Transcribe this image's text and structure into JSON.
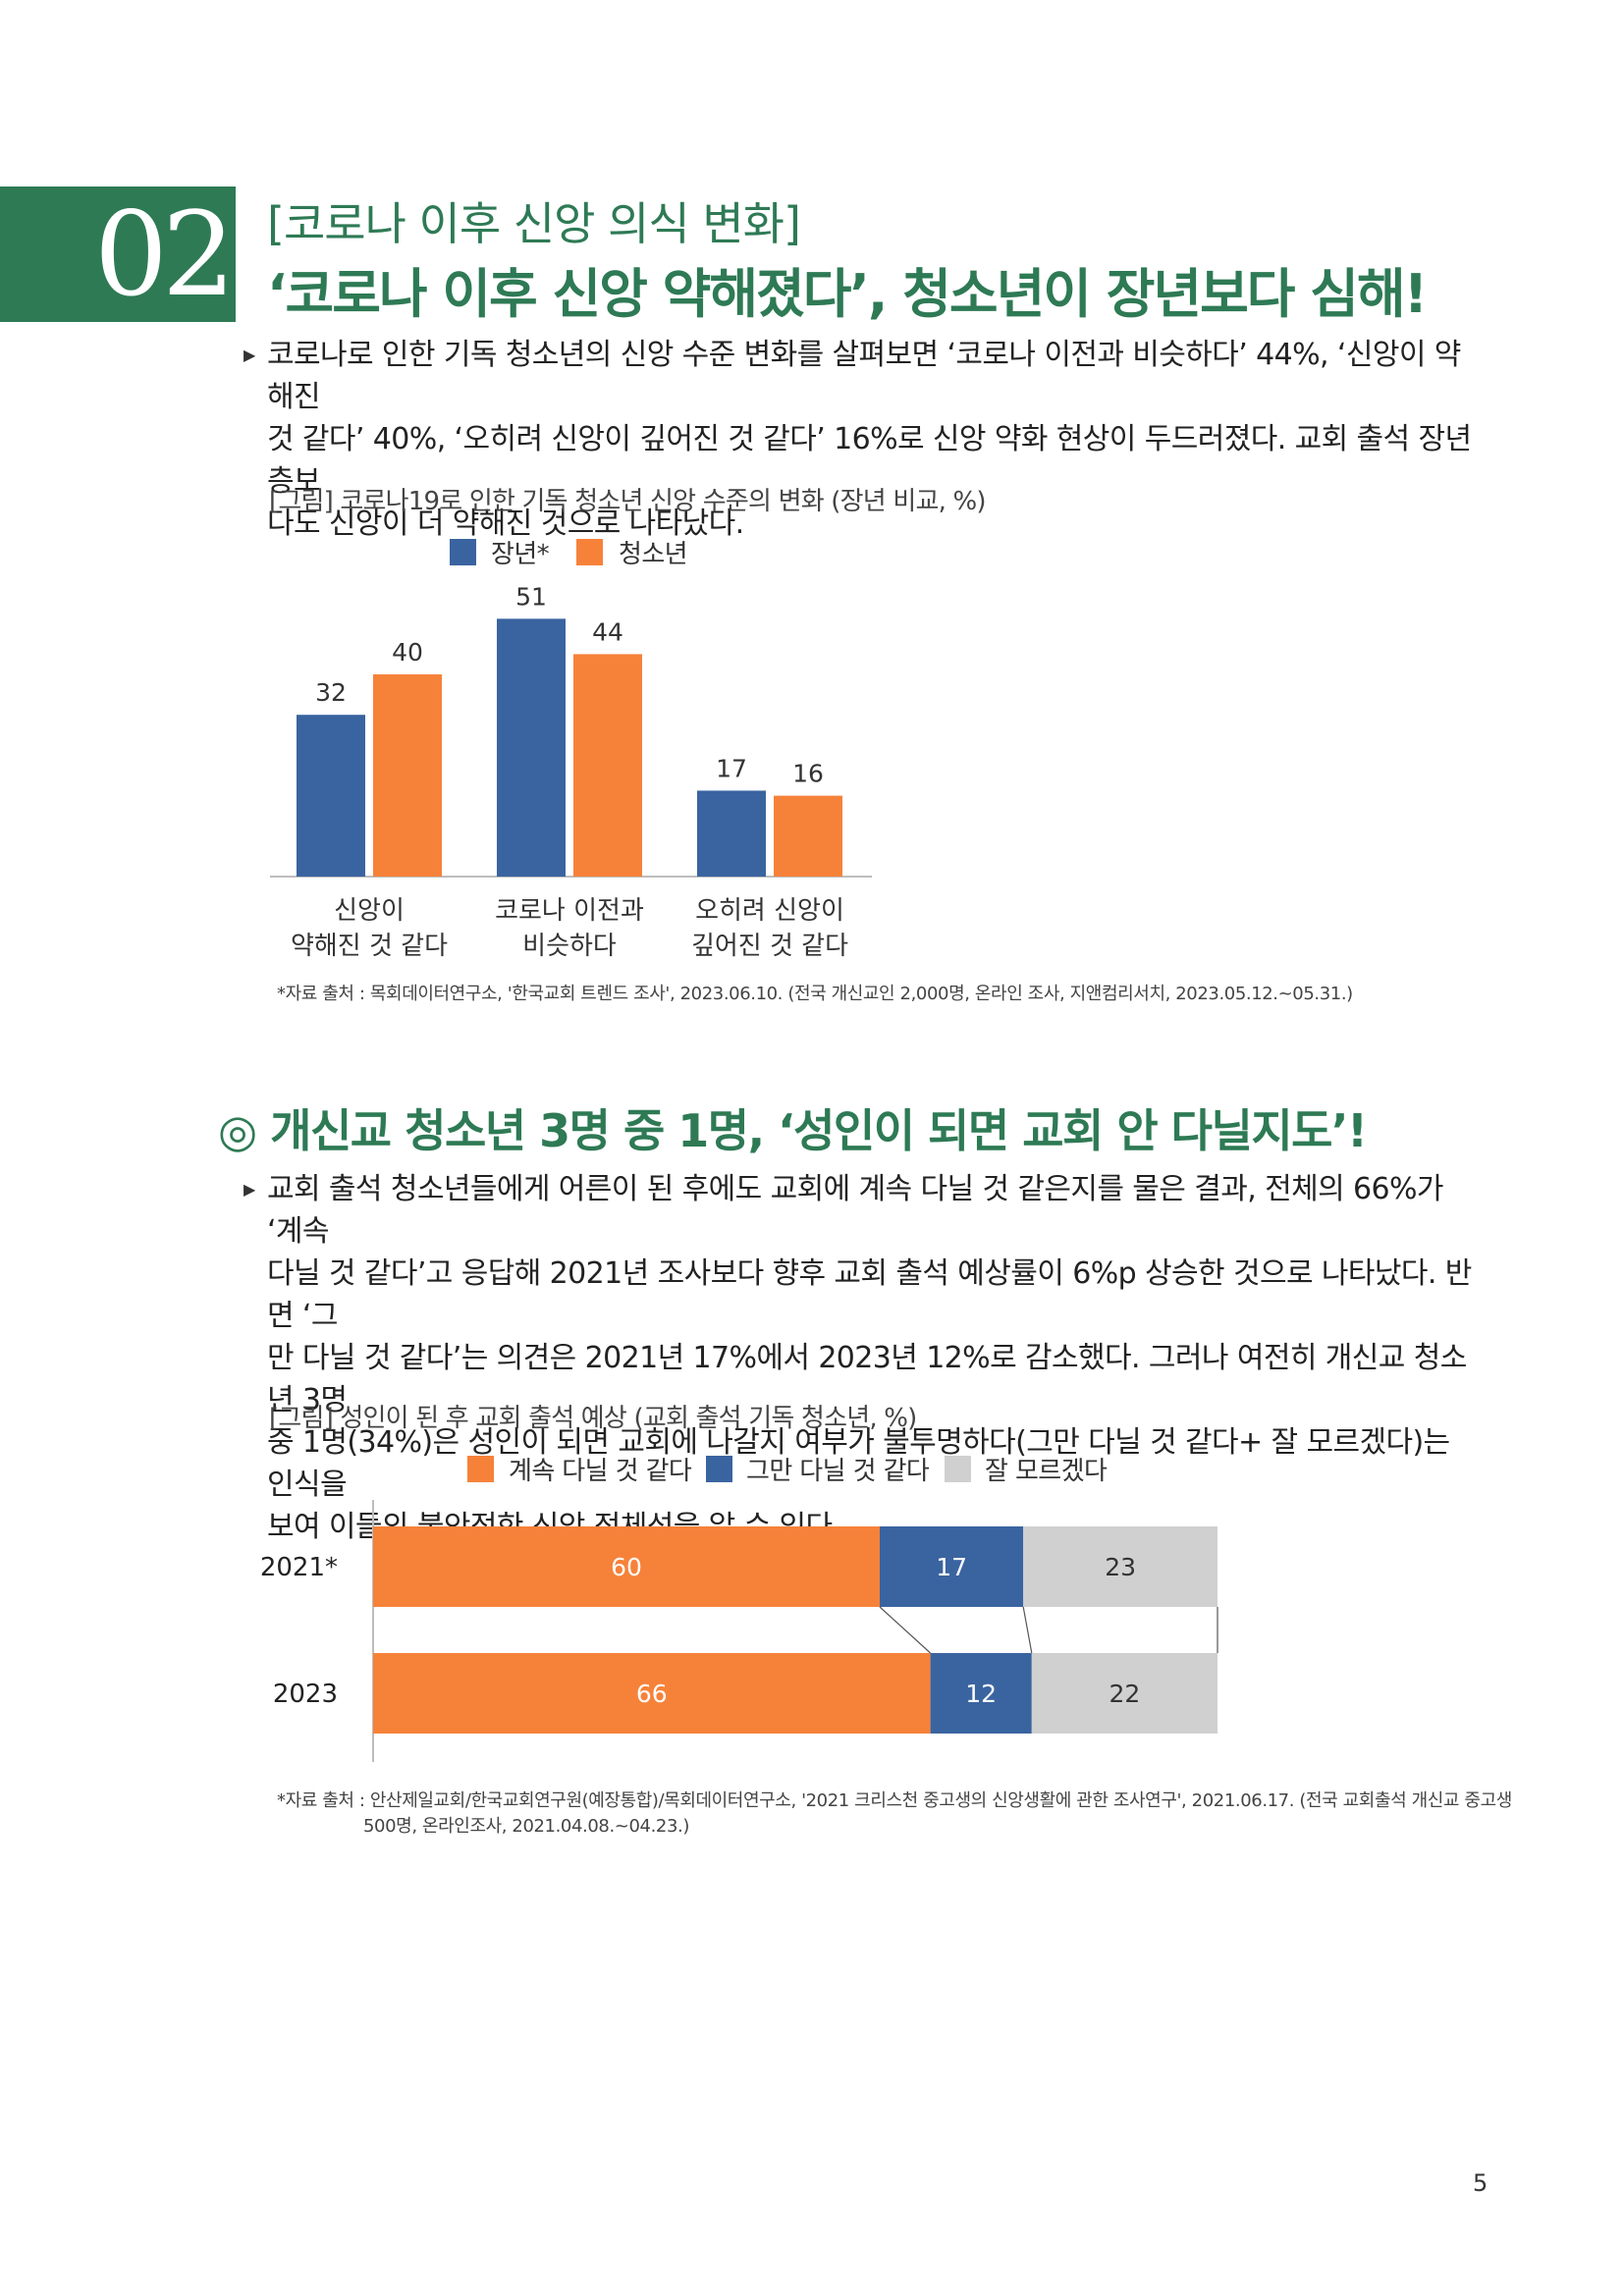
{
  "section": {
    "number": "02",
    "subtitle": "[코로나 이후 신앙 의식 변화]",
    "title": "‘코로나 이후 신앙 약해졌다’, 청소년이 장년보다 심해!"
  },
  "paragraph1": {
    "lines": [
      "코로나로 인한 기독 청소년의 신앙 수준 변화를 살펴보면 ‘코로나 이전과 비슷하다’ 44%, ‘신앙이 약해진",
      "것 같다’ 40%, ‘오히려 신앙이 깊어진 것 같다’ 16%로 신앙 약화 현상이 두드러졌다. 교회 출석 장년층보",
      "다도 신앙이 더 약해진 것으로 나타났다."
    ]
  },
  "figure1": {
    "title": "[그림] 코로나19로 인한 기독 청소년 신앙 수준의 변화 (장년 비교, %)",
    "source": "*자료 출처 : 목회데이터연구소, '한국교회 트렌드 조사', 2023.06.10. (전국 개신교인 2,000명, 온라인 조사, 지앤컴리서치, 2023.05.12.~05.31.)"
  },
  "section2": {
    "title": "◎ 개신교 청소년 3명 중 1명, ‘성인이 되면 교회 안 다닐지도’!"
  },
  "paragraph2": {
    "lines": [
      "교회 출석 청소년들에게 어른이 된 후에도 교회에 계속 다닐 것 같은지를 물은 결과, 전체의 66%가 ‘계속",
      "다닐 것 같다’고 응답해 2021년 조사보다 향후 교회 출석 예상률이 6%p 상승한 것으로 나타났다. 반면 ‘그",
      "만 다닐 것 같다’는 의견은 2021년 17%에서 2023년 12%로 감소했다. 그러나 여전히 개신교 청소년 3명",
      "중 1명(34%)은 성인이 되면 교회에 나갈지 여부가 불투명하다(그만 다닐 것 같다+ 잘 모르겠다)는 인식을",
      "보여 이들의 불안정한 신앙 정체성을 알 수 있다."
    ]
  },
  "figure2": {
    "title": "[그림] 성인이 된 후 교회 출석 예상 (교회 출석 기독 청소년, %)",
    "source_line1": "*자료 출처 : 안산제일교회/한국교회연구원(예장통합)/목회데이터연구소, '2021 크리스천 중고생의 신앙생활에 관한 조사연구', 2021.06.17. (전국 교회출석 개신교 중고생",
    "source_line2": "500명, 온라인조사, 2021.04.08.~04.23.)"
  },
  "chart_data": [
    {
      "type": "bar",
      "categories": [
        "신앙이\n약해진 것 같다",
        "코로나 이전과\n비슷하다",
        "오히려 신앙이\n깊어진 것 같다"
      ],
      "category_lines": [
        [
          "신앙이",
          "약해진 것 같다"
        ],
        [
          "코로나 이전과",
          "비슷하다"
        ],
        [
          "오히려 신앙이",
          "깊어진 것 같다"
        ]
      ],
      "series": [
        {
          "name": "장년*",
          "values": [
            32,
            51,
            17
          ],
          "color": "#3a64a0"
        },
        {
          "name": "청소년",
          "values": [
            40,
            44,
            16
          ],
          "color": "#f6823a"
        }
      ],
      "ylim": [
        0,
        55
      ],
      "legend": "top",
      "grid": false
    },
    {
      "type": "bar",
      "orientation": "horizontal",
      "stacked": true,
      "categories": [
        "2021*",
        "2023"
      ],
      "series": [
        {
          "name": "계속 다닐 것 같다",
          "values": [
            60,
            66
          ],
          "color": "#f6823a"
        },
        {
          "name": "그만 다닐 것 같다",
          "values": [
            17,
            12
          ],
          "color": "#3a64a0"
        },
        {
          "name": "잘 모르겠다",
          "values": [
            23,
            22
          ],
          "color": "#d0d0d0"
        }
      ],
      "xlim": [
        0,
        100
      ],
      "legend": "top",
      "grid": false
    }
  ],
  "page_number": "5"
}
